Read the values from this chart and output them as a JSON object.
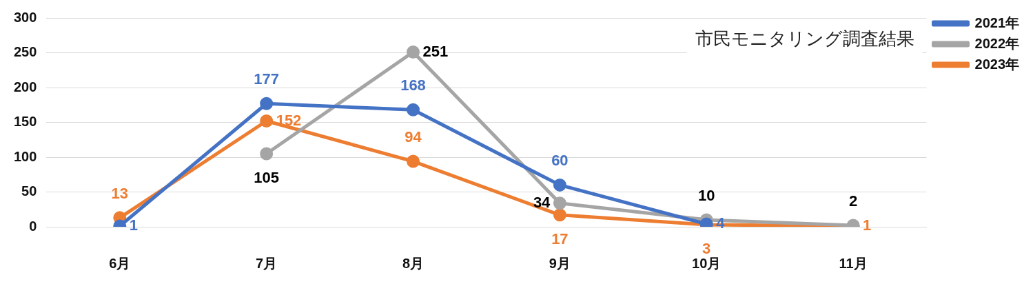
{
  "chart_data": {
    "type": "line",
    "title": "市民モニタリング調査結果",
    "categories": [
      "6月",
      "7月",
      "8月",
      "9月",
      "10月",
      "11月"
    ],
    "series": [
      {
        "name": "2021年",
        "color": "#4472c4",
        "values": [
          1,
          177,
          168,
          60,
          4,
          null
        ]
      },
      {
        "name": "2022年",
        "color": "#a5a5a5",
        "values": [
          null,
          105,
          251,
          34,
          10,
          2
        ]
      },
      {
        "name": "2023年",
        "color": "#ed7d31",
        "values": [
          13,
          152,
          94,
          17,
          3,
          1
        ]
      }
    ],
    "ylim": [
      0,
      300
    ],
    "yticks": [
      0,
      50,
      100,
      150,
      200,
      250,
      300
    ],
    "grid": "y",
    "legend": "top right",
    "marker": "circle",
    "line_style": "solid",
    "data_labels": true
  }
}
